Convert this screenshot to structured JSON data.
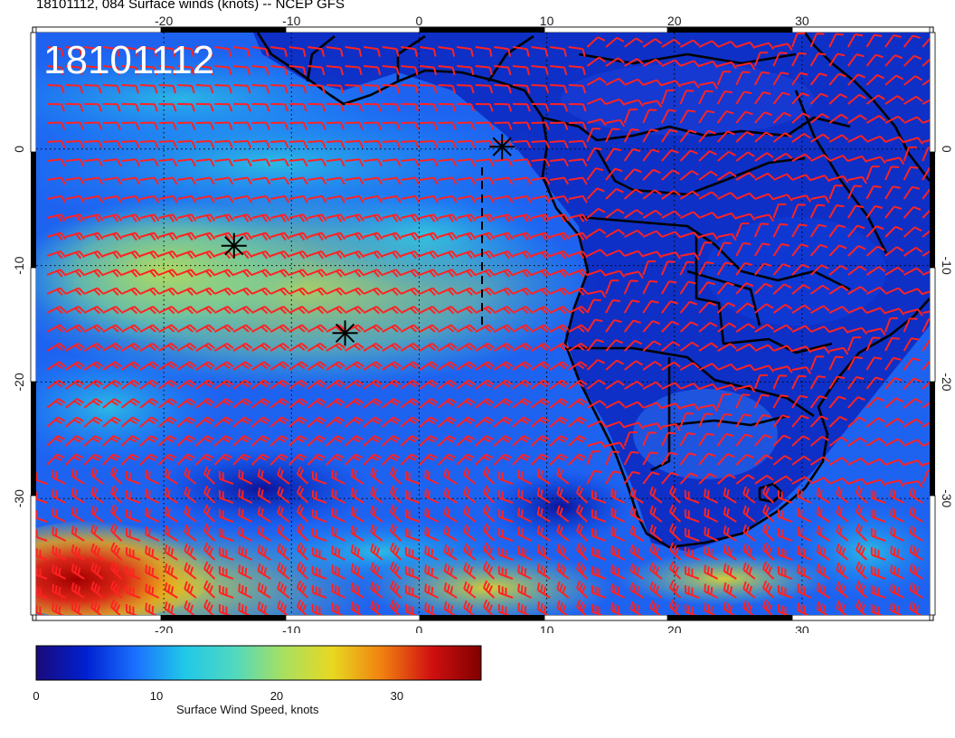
{
  "title": "18101112, 084 Surface winds (knots) -- NCEP GFS",
  "timestamp_overlay": "18101112",
  "map": {
    "lon_ticks": [
      "-20",
      "-10",
      "0",
      "10",
      "20",
      "30"
    ],
    "lat_ticks": [
      "0",
      "-10",
      "-20",
      "-30"
    ],
    "lon_values": [
      -20,
      -10,
      0,
      10,
      20,
      30
    ],
    "lat_values": [
      0,
      -10,
      -20,
      -30
    ],
    "lon_range": [
      -30,
      40
    ],
    "lat_range": [
      -40,
      10
    ],
    "grid": "dotted",
    "barb_color": "#ff2222",
    "coastline_color": "#000000",
    "markers": [
      {
        "name": "storm-marker-1",
        "lon": 6.5,
        "lat": 0.2
      },
      {
        "name": "storm-marker-2",
        "lon": -14.5,
        "lat": -8.3
      },
      {
        "name": "storm-marker-3",
        "lon": -5.8,
        "lat": -15.8
      }
    ]
  },
  "colorbar": {
    "label": "Surface Wind Speed, knots",
    "tick_labels": [
      "0",
      "10",
      "20",
      "30"
    ],
    "tick_values": [
      0,
      10,
      20,
      30
    ],
    "range": [
      0,
      37
    ],
    "colors": [
      "#1a0a7a",
      "#0020d0",
      "#1a70ff",
      "#20c8e8",
      "#50d8c0",
      "#a8e060",
      "#e8d820",
      "#f08010",
      "#d01010",
      "#800000"
    ]
  }
}
